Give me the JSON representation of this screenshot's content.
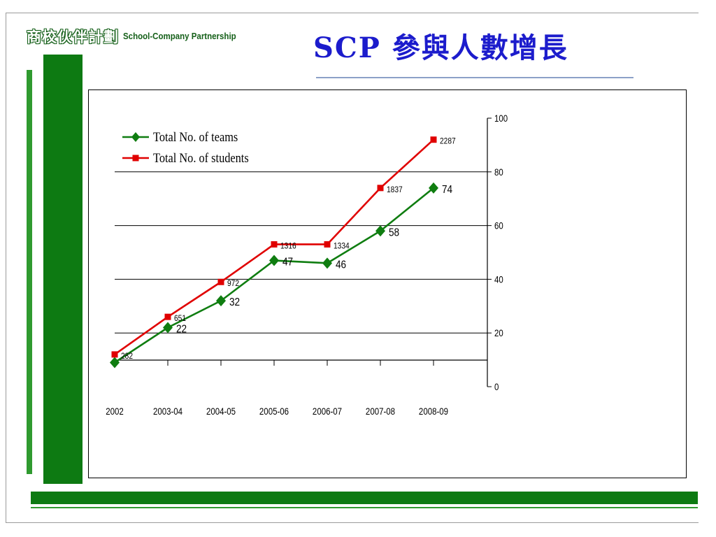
{
  "header": {
    "logo_cn": "商校伙伴計劃",
    "logo_en": "School-Company Partnership",
    "title": "SCP  參與人數增長"
  },
  "colors": {
    "teams": "#0f7d10",
    "students": "#e00000",
    "title": "#1c1ccc",
    "brand_green": "#0d7a12"
  },
  "chart_data": {
    "type": "line",
    "title": "",
    "xlabel": "",
    "ylabel": "",
    "categories": [
      "2002",
      "2003-04",
      "2004-05",
      "2005-06",
      "2006-07",
      "2007-08",
      "2008-09"
    ],
    "y_axis_position": "right",
    "y_ticks": [
      "0",
      "20",
      "40",
      "60",
      "80",
      "100"
    ],
    "ylim": [
      0,
      100
    ],
    "grid": true,
    "legend_position": "top-left",
    "series": [
      {
        "name": "Total No. of teams",
        "marker": "diamond",
        "color": "#0f7d10",
        "values": [
          9,
          22,
          32,
          47,
          46,
          58,
          74
        ],
        "labels": [
          "",
          "22",
          "32",
          "47",
          "46",
          "58",
          "74"
        ]
      },
      {
        "name": "Total No. of students",
        "marker": "square",
        "color": "#e00000",
        "values": [
          12,
          26,
          39,
          53,
          53,
          74,
          92
        ],
        "labels": [
          "282",
          "651",
          "972",
          "1316",
          "1334",
          "1837",
          "2287"
        ]
      }
    ]
  }
}
